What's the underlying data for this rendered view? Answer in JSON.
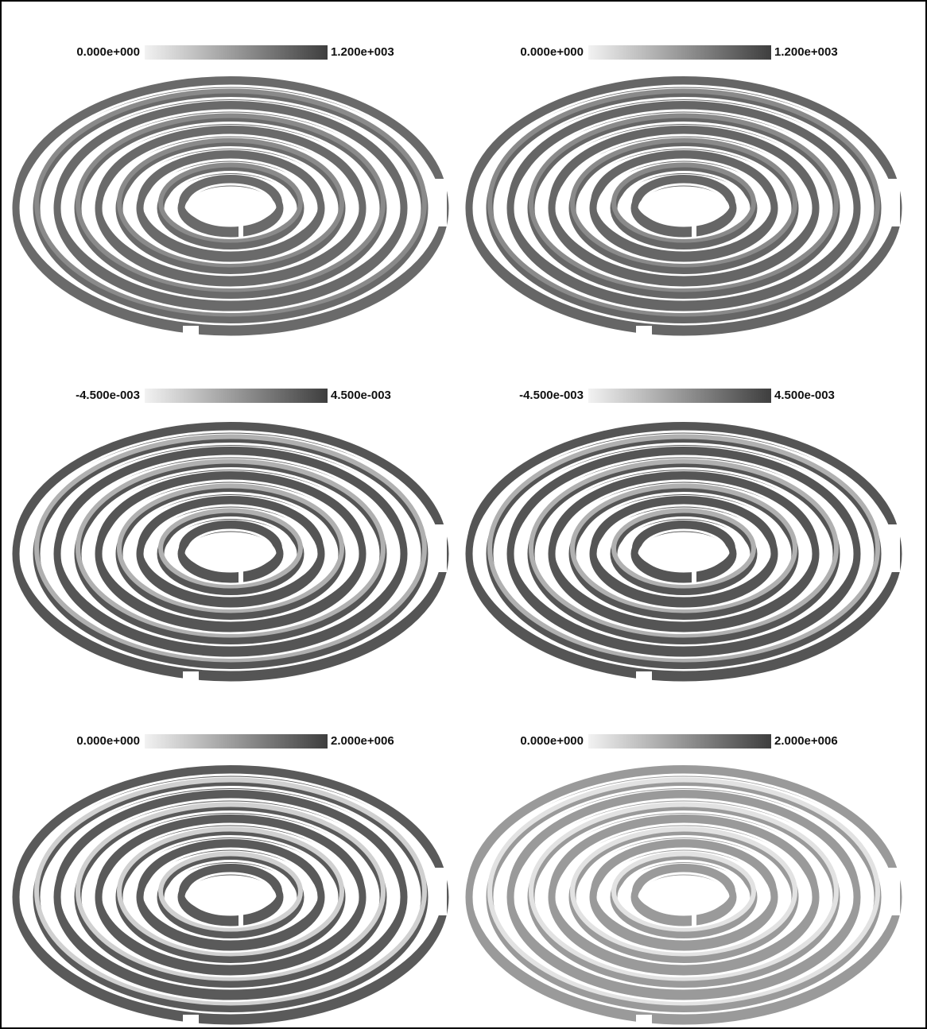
{
  "panels": [
    {
      "colorbar": {
        "min_label": "0.000e+000",
        "max_label": "1.200e+003"
      }
    },
    {
      "colorbar": {
        "min_label": "0.000e+000",
        "max_label": "1.200e+003"
      }
    },
    {
      "colorbar": {
        "min_label": "-4.500e-003",
        "max_label": "4.500e-003"
      }
    },
    {
      "colorbar": {
        "min_label": "-4.500e-003",
        "max_label": "4.500e-003"
      }
    },
    {
      "colorbar": {
        "min_label": "0.000e+000",
        "max_label": "2.000e+006"
      }
    },
    {
      "colorbar": {
        "min_label": "0.000e+000",
        "max_label": "2.000e+006"
      }
    }
  ]
}
